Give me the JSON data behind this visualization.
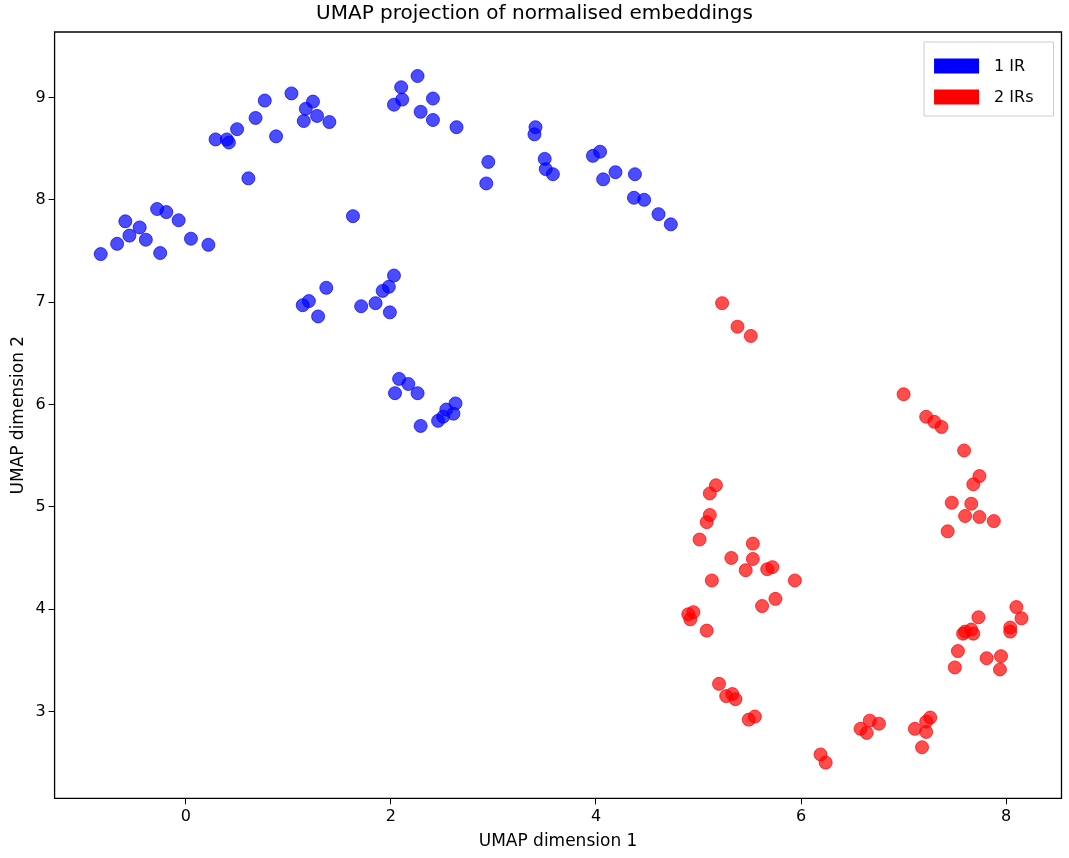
{
  "chart_data": {
    "type": "scatter",
    "title": "UMAP projection of normalised embeddings",
    "xlabel": "UMAP dimension 1",
    "ylabel": "UMAP dimension 2",
    "xlim": [
      -1.28,
      8.54
    ],
    "ylim": [
      2.15,
      9.64
    ],
    "xticks": [
      0,
      2,
      4,
      6,
      8
    ],
    "yticks": [
      3,
      4,
      5,
      6,
      7,
      8,
      9
    ],
    "grid": false,
    "legend": "top right",
    "marker": "circle",
    "series": [
      {
        "name": "1 IR",
        "color": "#0000ff",
        "x": [
          -0.83,
          -0.67,
          -0.59,
          -0.55,
          -0.45,
          -0.39,
          -0.28,
          -0.25,
          -0.19,
          -0.07,
          0.05,
          0.22,
          0.29,
          0.4,
          0.42,
          0.5,
          0.61,
          0.68,
          0.77,
          0.88,
          1.03,
          1.15,
          1.17,
          1.24,
          1.28,
          1.4,
          1.63,
          1.14,
          1.2,
          1.29,
          1.37,
          1.71,
          1.85,
          1.92,
          1.98,
          1.99,
          2.03,
          2.08,
          2.04,
          2.17,
          2.26,
          2.29,
          2.46,
          2.51,
          2.54,
          2.61,
          2.63,
          2.03,
          2.1,
          2.11,
          2.26,
          2.29,
          2.41,
          2.41,
          2.64,
          2.95,
          2.93,
          3.41,
          3.4,
          3.5,
          3.51,
          3.58,
          3.97,
          4.04,
          4.07,
          4.19,
          4.38,
          4.37,
          4.47,
          4.61,
          4.73
        ],
        "values": [
          7.47,
          7.57,
          7.79,
          7.65,
          7.73,
          7.61,
          7.91,
          7.48,
          7.88,
          7.8,
          7.62,
          7.56,
          8.59,
          8.59,
          8.56,
          8.69,
          8.21,
          8.8,
          8.97,
          8.62,
          9.04,
          8.77,
          8.89,
          8.96,
          8.82,
          8.76,
          7.84,
          6.97,
          7.01,
          6.86,
          7.14,
          6.96,
          6.99,
          7.11,
          7.15,
          6.9,
          7.26,
          6.25,
          6.11,
          6.2,
          6.11,
          5.79,
          5.84,
          5.88,
          5.95,
          5.91,
          6.01,
          8.93,
          9.1,
          8.98,
          9.21,
          8.86,
          8.99,
          8.78,
          8.71,
          8.37,
          8.16,
          8.71,
          8.64,
          8.4,
          8.3,
          8.25,
          8.43,
          8.47,
          8.2,
          8.27,
          8.25,
          8.02,
          8.0,
          7.86,
          7.76
        ]
      },
      {
        "name": "2 IRs",
        "color": "#ff0000",
        "x": [
          5.23,
          5.38,
          5.51,
          7.0,
          7.22,
          7.3,
          7.37,
          7.59,
          7.74,
          7.68,
          7.47,
          7.66,
          7.6,
          7.74,
          7.88,
          7.43,
          5.17,
          5.11,
          5.11,
          5.08,
          5.01,
          5.32,
          5.53,
          5.53,
          5.46,
          5.67,
          5.72,
          5.13,
          5.94,
          5.62,
          5.75,
          4.95,
          4.9,
          4.92,
          5.08,
          5.2,
          5.33,
          5.27,
          5.36,
          5.49,
          5.55,
          6.19,
          6.24,
          6.58,
          6.67,
          6.64,
          6.76,
          7.11,
          7.22,
          7.26,
          7.22,
          7.18,
          8.1,
          8.15,
          8.04,
          8.04,
          7.73,
          7.6,
          7.66,
          7.68,
          7.58,
          7.53,
          7.5,
          7.81,
          7.95,
          7.94
        ],
        "values": [
          6.99,
          6.76,
          6.67,
          6.1,
          5.88,
          5.83,
          5.78,
          5.55,
          5.3,
          5.22,
          5.04,
          5.03,
          4.91,
          4.9,
          4.86,
          4.76,
          5.21,
          5.13,
          4.92,
          4.85,
          4.68,
          4.5,
          4.64,
          4.49,
          4.38,
          4.39,
          4.41,
          4.28,
          4.28,
          4.03,
          4.1,
          3.97,
          3.95,
          3.9,
          3.79,
          3.27,
          3.17,
          3.15,
          3.12,
          2.92,
          2.95,
          2.58,
          2.5,
          2.83,
          2.91,
          2.79,
          2.88,
          2.83,
          2.9,
          2.94,
          2.8,
          2.65,
          4.02,
          3.91,
          3.82,
          3.78,
          3.92,
          3.78,
          3.8,
          3.76,
          3.76,
          3.59,
          3.43,
          3.52,
          3.54,
          3.41
        ]
      }
    ]
  }
}
